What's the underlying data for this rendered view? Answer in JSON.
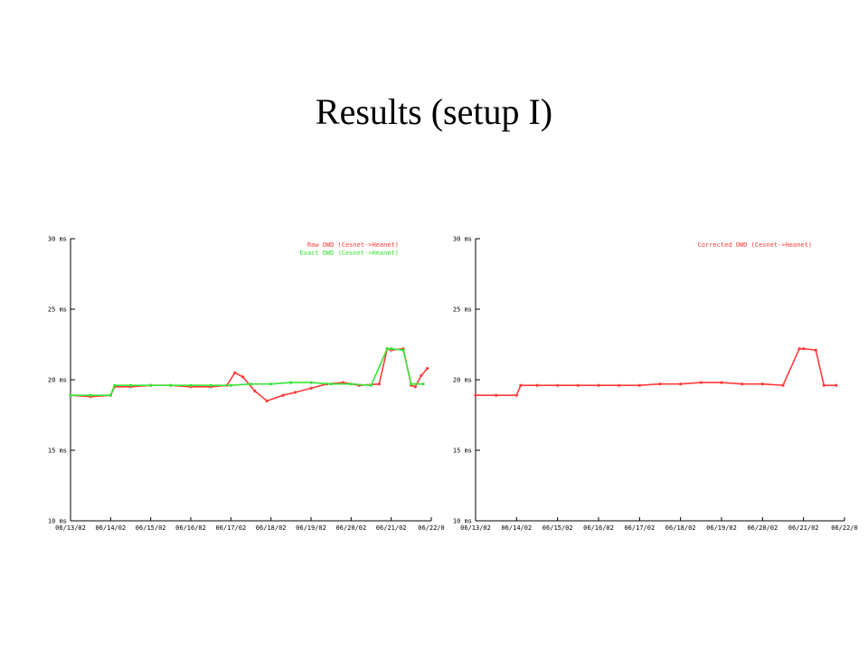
{
  "slide": {
    "title": "Results (setup I)"
  },
  "colors": {
    "raw": "#ff3b3b",
    "exact": "#35e535",
    "corrected": "#ff3b3b",
    "axis": "#000000"
  },
  "chart_data": [
    {
      "type": "scatter",
      "ylim": [
        10,
        30
      ],
      "y_ticks": [
        "10 ms",
        "15 ms",
        "20 ms",
        "25 ms",
        "30 ms"
      ],
      "y_tick_values": [
        10,
        15,
        20,
        25,
        30
      ],
      "x_ticks": [
        "06/13/02",
        "06/14/02",
        "06/15/02",
        "06/16/02",
        "06/17/02",
        "06/18/02",
        "06/19/02",
        "06/20/02",
        "06/21/02",
        "06/22/0"
      ],
      "legend_placement": "top-right",
      "series": [
        {
          "name": "Raw OWD (Cesnet->Heanet)",
          "color": "#ff3b3b",
          "x": [
            0.0,
            0.5,
            1.0,
            1.1,
            1.5,
            2.0,
            2.5,
            3.0,
            3.5,
            3.9,
            4.1,
            4.3,
            4.6,
            4.9,
            5.3,
            5.6,
            6.0,
            6.4,
            6.8,
            7.2,
            7.7,
            7.9,
            8.0,
            8.3,
            8.5,
            8.6,
            8.75,
            8.9
          ],
          "values": [
            18.9,
            18.8,
            18.9,
            19.5,
            19.5,
            19.6,
            19.6,
            19.5,
            19.5,
            19.6,
            20.5,
            20.2,
            19.2,
            18.5,
            18.9,
            19.1,
            19.4,
            19.7,
            19.8,
            19.6,
            19.7,
            22.2,
            22.1,
            22.2,
            19.6,
            19.5,
            20.3,
            20.8
          ]
        },
        {
          "name": "Exact OWD (Cesnet->Heanet)",
          "color": "#35e535",
          "x": [
            0.0,
            0.5,
            1.0,
            1.1,
            1.5,
            2.0,
            2.5,
            3.0,
            3.5,
            4.0,
            4.5,
            5.0,
            5.5,
            6.0,
            6.5,
            7.0,
            7.5,
            7.9,
            8.0,
            8.3,
            8.5,
            8.8
          ],
          "values": [
            18.9,
            18.9,
            18.9,
            19.6,
            19.6,
            19.6,
            19.6,
            19.6,
            19.6,
            19.6,
            19.7,
            19.7,
            19.8,
            19.8,
            19.7,
            19.7,
            19.6,
            22.2,
            22.2,
            22.1,
            19.7,
            19.7
          ]
        }
      ]
    },
    {
      "type": "scatter",
      "ylim": [
        10,
        30
      ],
      "y_ticks": [
        "10 ms",
        "15 ms",
        "20 ms",
        "25 ms",
        "30 ms"
      ],
      "y_tick_values": [
        10,
        15,
        20,
        25,
        30
      ],
      "x_ticks": [
        "06/13/02",
        "06/14/02",
        "06/15/02",
        "06/16/02",
        "06/17/02",
        "06/18/02",
        "06/19/02",
        "06/20/02",
        "06/21/02",
        "06/22/0"
      ],
      "legend_placement": "top-right",
      "series": [
        {
          "name": "Corrected OWD (Cesnet->Heanet)",
          "color": "#ff3b3b",
          "x": [
            0.0,
            0.5,
            1.0,
            1.1,
            1.5,
            2.0,
            2.5,
            3.0,
            3.5,
            4.0,
            4.5,
            5.0,
            5.5,
            6.0,
            6.5,
            7.0,
            7.5,
            7.9,
            8.0,
            8.3,
            8.5,
            8.8
          ],
          "values": [
            18.9,
            18.9,
            18.9,
            19.6,
            19.6,
            19.6,
            19.6,
            19.6,
            19.6,
            19.6,
            19.7,
            19.7,
            19.8,
            19.8,
            19.7,
            19.7,
            19.6,
            22.2,
            22.2,
            22.1,
            19.6,
            19.6
          ]
        }
      ]
    }
  ]
}
